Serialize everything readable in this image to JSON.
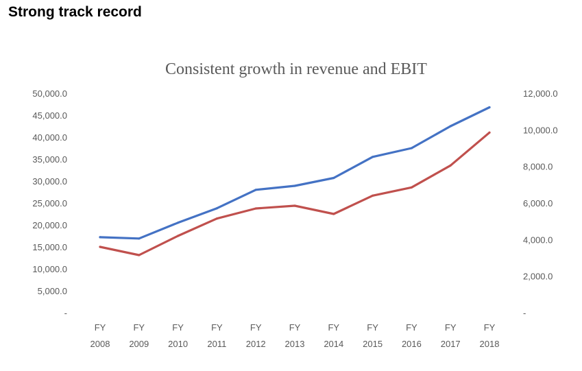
{
  "slide": {
    "title": "Strong track record"
  },
  "chart_data": {
    "type": "line",
    "title": "Consistent growth in revenue and EBIT",
    "xlabel": "",
    "ylabel": "",
    "categories": [
      [
        "FY",
        "2008"
      ],
      [
        "FY",
        "2009"
      ],
      [
        "FY",
        "2010"
      ],
      [
        "FY",
        "2011"
      ],
      [
        "FY",
        "2012"
      ],
      [
        "FY",
        "2013"
      ],
      [
        "FY",
        "2014"
      ],
      [
        "FY",
        "2015"
      ],
      [
        "FY",
        "2016"
      ],
      [
        "FY",
        "2017"
      ],
      [
        "FY",
        "2018"
      ]
    ],
    "y_left": {
      "ylim": [
        0,
        50000
      ],
      "ticks": [
        0,
        5000,
        10000,
        15000,
        20000,
        25000,
        30000,
        35000,
        40000,
        45000,
        50000
      ],
      "tick_labels": [
        "-",
        "5,000.0",
        "10,000.0",
        "15,000.0",
        "20,000.0",
        "25,000.0",
        "30,000.0",
        "35,000.0",
        "40,000.0",
        "45,000.0",
        "50,000.0"
      ]
    },
    "y_right": {
      "ylim": [
        0,
        12000
      ],
      "ticks": [
        0,
        2000,
        4000,
        6000,
        8000,
        10000,
        12000
      ],
      "tick_labels": [
        "-",
        "2,000.0",
        "4,000.0",
        "6,000.0",
        "8,000.0",
        "10,000.0",
        "12,000.0"
      ]
    },
    "series": [
      {
        "axis": "left",
        "color": "#4472C4",
        "values": [
          17200,
          16900,
          20500,
          23800,
          28000,
          28900,
          30700,
          35500,
          37500,
          42500,
          46800
        ]
      },
      {
        "axis": "right",
        "color": "#C0504D",
        "values": [
          3600,
          3150,
          4200,
          5150,
          5700,
          5850,
          5400,
          6400,
          6850,
          8050,
          9850
        ]
      }
    ],
    "grid": false,
    "legend": "none"
  }
}
